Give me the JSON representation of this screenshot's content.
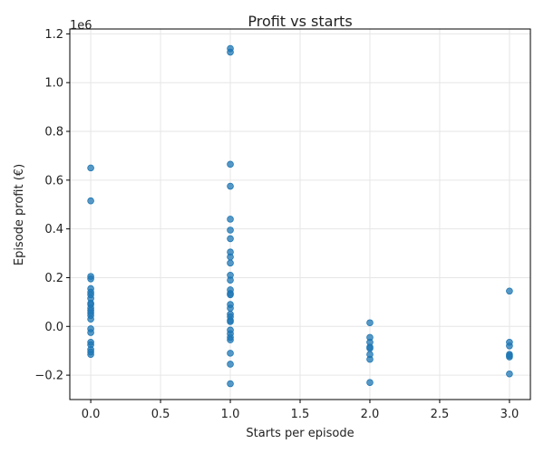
{
  "chart_data": {
    "type": "scatter",
    "title": "Profit vs starts",
    "xlabel": "Starts per episode",
    "ylabel": "Episode profit (€)",
    "y_offset_label": "1e6",
    "xlim": [
      -0.15,
      3.15
    ],
    "ylim": [
      -0.3,
      1.22
    ],
    "x_ticks": [
      0.0,
      0.5,
      1.0,
      1.5,
      2.0,
      2.5,
      3.0
    ],
    "x_tick_labels": [
      "0.0",
      "0.5",
      "1.0",
      "1.5",
      "2.0",
      "2.5",
      "3.0"
    ],
    "y_ticks": [
      -0.2,
      0.0,
      0.2,
      0.4,
      0.6,
      0.8,
      1.0,
      1.2
    ],
    "y_tick_labels": [
      "−0.2",
      "0.0",
      "0.2",
      "0.4",
      "0.6",
      "0.8",
      "1.0",
      "1.2"
    ],
    "grid": true,
    "marker_color": "#1f77b4",
    "series": [
      {
        "points": [
          [
            0,
            0.65
          ],
          [
            0,
            0.515
          ],
          [
            0,
            0.205
          ],
          [
            0,
            0.195
          ],
          [
            0,
            0.155
          ],
          [
            0,
            0.14
          ],
          [
            0,
            0.13
          ],
          [
            0,
            0.115
          ],
          [
            0,
            0.095
          ],
          [
            0,
            0.09
          ],
          [
            0,
            0.075
          ],
          [
            0,
            0.065
          ],
          [
            0,
            0.055
          ],
          [
            0,
            0.045
          ],
          [
            0,
            0.03
          ],
          [
            0,
            -0.01
          ],
          [
            0,
            -0.025
          ],
          [
            0,
            -0.065
          ],
          [
            0,
            -0.075
          ],
          [
            0,
            -0.095
          ],
          [
            0,
            -0.105
          ],
          [
            0,
            -0.115
          ],
          [
            1,
            1.14
          ],
          [
            1,
            1.125
          ],
          [
            1,
            0.665
          ],
          [
            1,
            0.575
          ],
          [
            1,
            0.44
          ],
          [
            1,
            0.395
          ],
          [
            1,
            0.36
          ],
          [
            1,
            0.305
          ],
          [
            1,
            0.285
          ],
          [
            1,
            0.26
          ],
          [
            1,
            0.21
          ],
          [
            1,
            0.19
          ],
          [
            1,
            0.15
          ],
          [
            1,
            0.135
          ],
          [
            1,
            0.13
          ],
          [
            1,
            0.09
          ],
          [
            1,
            0.075
          ],
          [
            1,
            0.05
          ],
          [
            1,
            0.04
          ],
          [
            1,
            0.025
          ],
          [
            1,
            0.02
          ],
          [
            1,
            -0.015
          ],
          [
            1,
            -0.03
          ],
          [
            1,
            -0.045
          ],
          [
            1,
            -0.055
          ],
          [
            1,
            -0.11
          ],
          [
            1,
            -0.155
          ],
          [
            1,
            -0.235
          ],
          [
            2,
            0.015
          ],
          [
            2,
            -0.045
          ],
          [
            2,
            -0.065
          ],
          [
            2,
            -0.085
          ],
          [
            2,
            -0.09
          ],
          [
            2,
            -0.115
          ],
          [
            2,
            -0.135
          ],
          [
            2,
            -0.23
          ],
          [
            3,
            0.145
          ],
          [
            3,
            -0.065
          ],
          [
            3,
            -0.08
          ],
          [
            3,
            -0.115
          ],
          [
            3,
            -0.12
          ],
          [
            3,
            -0.125
          ],
          [
            3,
            -0.195
          ]
        ]
      }
    ]
  }
}
